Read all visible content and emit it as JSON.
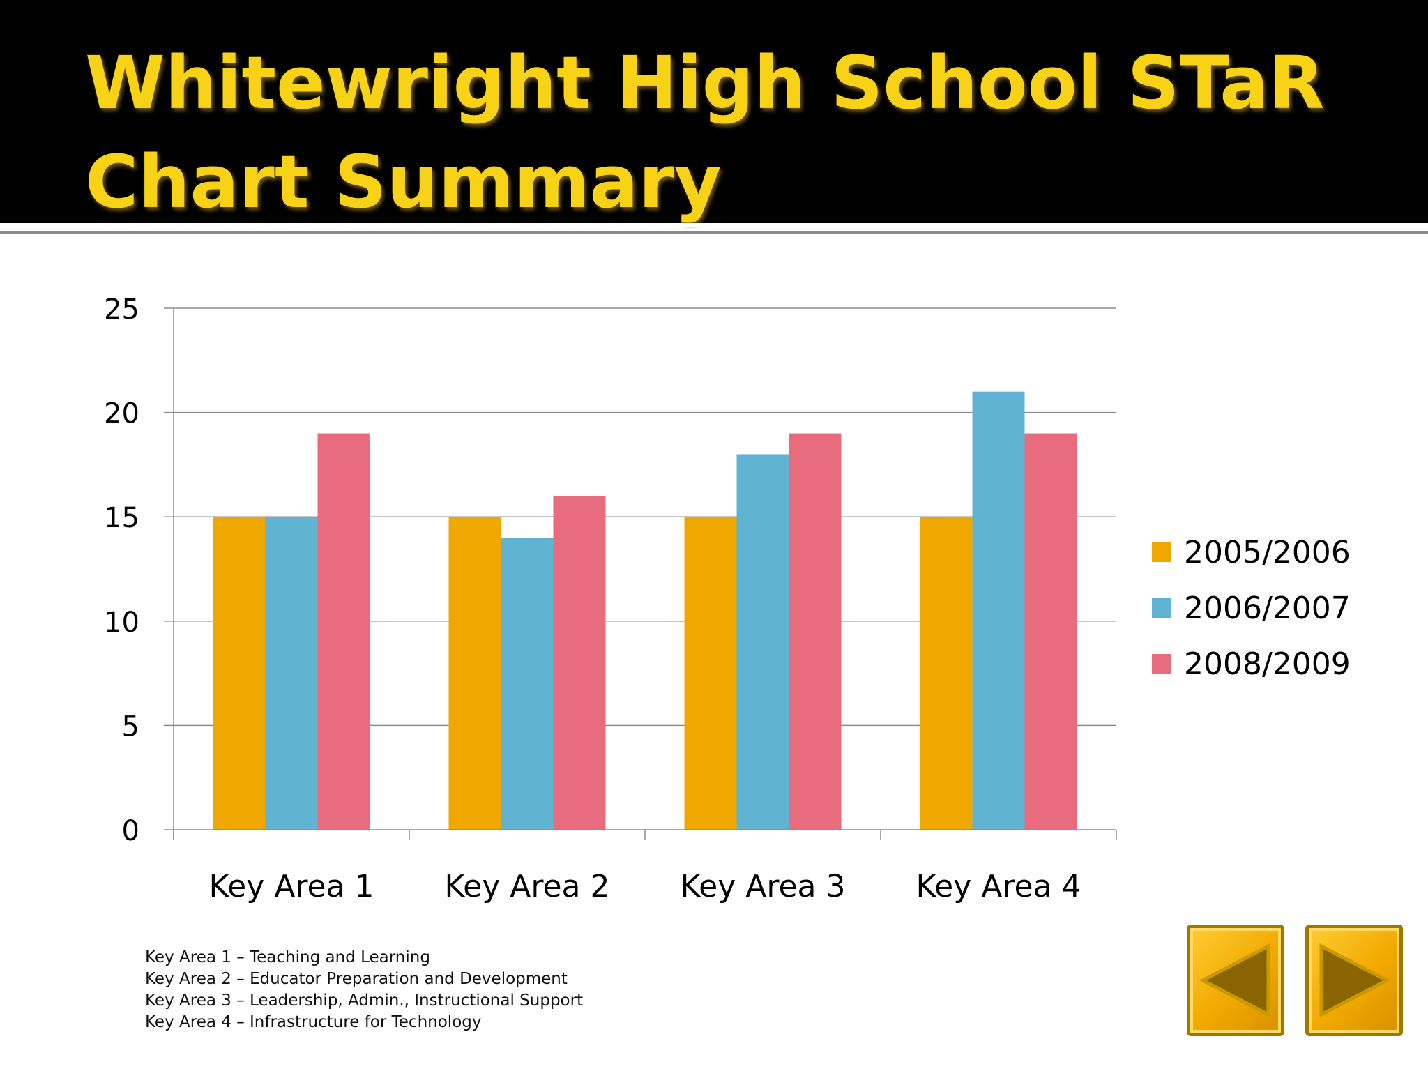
{
  "slide": {
    "title_lines": [
      "Whitewright High School STaR",
      "Chart Summary"
    ]
  },
  "chart_data": {
    "type": "bar",
    "title": "",
    "xlabel": "",
    "ylabel": "",
    "categories": [
      "Key Area 1",
      "Key Area 2",
      "Key Area 3",
      "Key Area 4"
    ],
    "series": [
      {
        "name": "2005/2006",
        "values": [
          15,
          15,
          15,
          15
        ],
        "color": "#f0a800"
      },
      {
        "name": "2006/2007",
        "values": [
          15,
          14,
          18,
          21
        ],
        "color": "#61b4d1"
      },
      {
        "name": "2008/2009",
        "values": [
          19,
          16,
          19,
          19
        ],
        "color": "#e86b7e"
      }
    ],
    "ylim": [
      0,
      25
    ],
    "yticks": [
      "0",
      "5",
      "10",
      "15",
      "20",
      "25"
    ],
    "ytick_values": [
      0,
      5,
      10,
      15,
      20,
      25
    ],
    "grid": true,
    "legend_position": "right"
  },
  "notes": [
    "Key Area 1 – Teaching and Learning",
    "Key Area 2 – Educator Preparation and Development",
    "Key Area 3 – Leadership, Admin., Instructional Support",
    "Key Area 4 – Infrastructure for Technology"
  ],
  "navigation": {
    "previous_icon": "triangle-left-icon",
    "next_icon": "triangle-right-icon"
  },
  "colors": {
    "title": "#f7d216",
    "title_bar": "#000000",
    "button_fill": "#f2a900",
    "button_arrow": "#8a6400"
  }
}
